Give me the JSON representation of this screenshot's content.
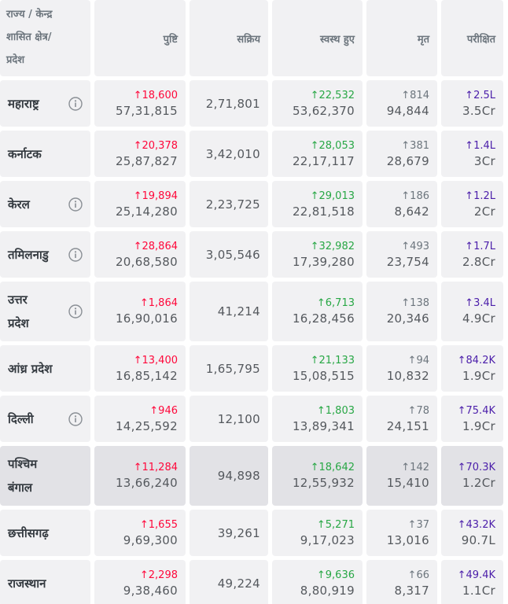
{
  "header": {
    "state": "राज्य / केन्द्र\nशासित क्षेत्र/\nप्रदेश",
    "confirmed": "पुष्टि",
    "active": "सक्रिय",
    "recovered": "स्वस्थ हुए",
    "deceased": "मृत",
    "tested": "परीक्षित"
  },
  "rows": [
    {
      "name": "महाराष्ट्र",
      "info": true,
      "confirmed": {
        "delta": "18,600",
        "total": "57,31,815"
      },
      "active": "2,71,801",
      "recovered": {
        "delta": "22,532",
        "total": "53,62,370"
      },
      "deceased": {
        "delta": "814",
        "total": "94,844"
      },
      "tested": {
        "delta": "2.5L",
        "total": "3.5Cr"
      }
    },
    {
      "name": "कर्नाटक",
      "confirmed": {
        "delta": "20,378",
        "total": "25,87,827"
      },
      "active": "3,42,010",
      "recovered": {
        "delta": "28,053",
        "total": "22,17,117"
      },
      "deceased": {
        "delta": "381",
        "total": "28,679"
      },
      "tested": {
        "delta": "1.4L",
        "total": "3Cr"
      }
    },
    {
      "name": "केरल",
      "info": true,
      "confirmed": {
        "delta": "19,894",
        "total": "25,14,280"
      },
      "active": "2,23,725",
      "recovered": {
        "delta": "29,013",
        "total": "22,81,518"
      },
      "deceased": {
        "delta": "186",
        "total": "8,642"
      },
      "tested": {
        "delta": "1.2L",
        "total": "2Cr"
      }
    },
    {
      "name": "तमिलनाडु",
      "info": true,
      "confirmed": {
        "delta": "28,864",
        "total": "20,68,580"
      },
      "active": "3,05,546",
      "recovered": {
        "delta": "32,982",
        "total": "17,39,280"
      },
      "deceased": {
        "delta": "493",
        "total": "23,754"
      },
      "tested": {
        "delta": "1.7L",
        "total": "2.8Cr"
      }
    },
    {
      "name": "उत्तर\nप्रदेश",
      "info": true,
      "confirmed": {
        "delta": "1,864",
        "total": "16,90,016"
      },
      "active": "41,214",
      "recovered": {
        "delta": "6,713",
        "total": "16,28,456"
      },
      "deceased": {
        "delta": "138",
        "total": "20,346"
      },
      "tested": {
        "delta": "3.4L",
        "total": "4.9Cr"
      }
    },
    {
      "name": "आंध्र प्रदेश",
      "confirmed": {
        "delta": "13,400",
        "total": "16,85,142"
      },
      "active": "1,65,795",
      "recovered": {
        "delta": "21,133",
        "total": "15,08,515"
      },
      "deceased": {
        "delta": "94",
        "total": "10,832"
      },
      "tested": {
        "delta": "84.2K",
        "total": "1.9Cr"
      }
    },
    {
      "name": "दिल्ली",
      "info": true,
      "confirmed": {
        "delta": "946",
        "total": "14,25,592"
      },
      "active": "12,100",
      "recovered": {
        "delta": "1,803",
        "total": "13,89,341"
      },
      "deceased": {
        "delta": "78",
        "total": "24,151"
      },
      "tested": {
        "delta": "75.4K",
        "total": "1.9Cr"
      }
    },
    {
      "name": "पश्चिम\nबंगाल",
      "highlighted": true,
      "confirmed": {
        "delta": "11,284",
        "total": "13,66,240"
      },
      "active": "94,898",
      "recovered": {
        "delta": "18,642",
        "total": "12,55,932"
      },
      "deceased": {
        "delta": "142",
        "total": "15,410"
      },
      "tested": {
        "delta": "70.3K",
        "total": "1.2Cr"
      }
    },
    {
      "name": "छत्तीसगढ़",
      "confirmed": {
        "delta": "1,655",
        "total": "9,69,300"
      },
      "active": "39,261",
      "recovered": {
        "delta": "5,271",
        "total": "9,17,023"
      },
      "deceased": {
        "delta": "37",
        "total": "13,016"
      },
      "tested": {
        "delta": "43.2K",
        "total": "90.7L"
      }
    },
    {
      "name": "राजस्थान",
      "confirmed": {
        "delta": "2,298",
        "total": "9,38,460"
      },
      "active": "49,224",
      "recovered": {
        "delta": "9,636",
        "total": "8,80,919"
      },
      "deceased": {
        "delta": "66",
        "total": "8,317"
      },
      "tested": {
        "delta": "49.4K",
        "total": "1.1Cr"
      }
    }
  ]
}
